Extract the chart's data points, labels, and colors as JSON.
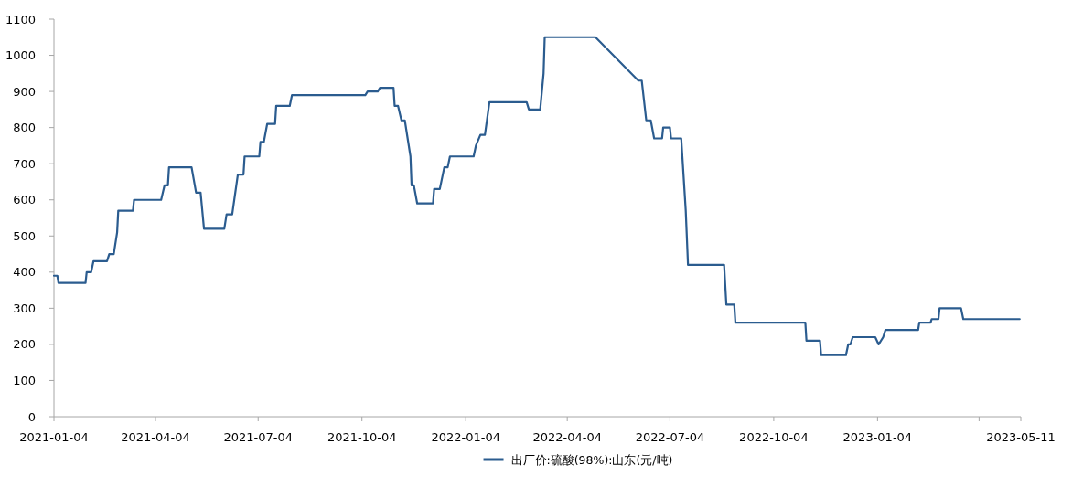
{
  "chart_data": {
    "type": "line",
    "x": [
      "2021-01-04",
      "2021-01-07",
      "2021-01-08",
      "2021-02-01",
      "2021-02-02",
      "2021-02-06",
      "2021-02-08",
      "2021-02-20",
      "2021-02-22",
      "2021-02-26",
      "2021-03-01",
      "2021-03-02",
      "2021-03-15",
      "2021-03-16",
      "2021-04-09",
      "2021-04-12",
      "2021-04-15",
      "2021-04-16",
      "2021-05-06",
      "2021-05-10",
      "2021-05-14",
      "2021-05-17",
      "2021-06-04",
      "2021-06-06",
      "2021-06-11",
      "2021-06-16",
      "2021-06-21",
      "2021-06-22",
      "2021-07-05",
      "2021-07-06",
      "2021-07-09",
      "2021-07-12",
      "2021-07-19",
      "2021-07-20",
      "2021-08-01",
      "2021-08-03",
      "2021-10-07",
      "2021-10-09",
      "2021-10-18",
      "2021-10-20",
      "2021-11-01",
      "2021-11-02",
      "2021-11-05",
      "2021-11-08",
      "2021-11-11",
      "2021-11-16",
      "2021-11-17",
      "2021-11-19",
      "2021-11-22",
      "2021-12-06",
      "2021-12-07",
      "2021-12-12",
      "2021-12-16",
      "2021-12-19",
      "2021-12-21",
      "2022-01-11",
      "2022-01-13",
      "2022-01-17",
      "2022-01-21",
      "2022-01-25",
      "2022-02-27",
      "2022-03-01",
      "2022-03-11",
      "2022-03-14",
      "2022-03-15",
      "2022-04-29",
      "2022-06-06",
      "2022-06-09",
      "2022-06-13",
      "2022-06-17",
      "2022-06-20",
      "2022-06-27",
      "2022-06-28",
      "2022-07-04",
      "2022-07-05",
      "2022-07-14",
      "2022-07-18",
      "2022-07-20",
      "2022-08-21",
      "2022-08-23",
      "2022-08-30",
      "2022-08-31",
      "2022-11-01",
      "2022-11-02",
      "2022-11-14",
      "2022-11-15",
      "2022-12-07",
      "2022-12-09",
      "2022-12-11",
      "2022-12-13",
      "2023-01-02",
      "2023-01-05",
      "2023-01-09",
      "2023-01-11",
      "2023-02-09",
      "2023-02-10",
      "2023-02-20",
      "2023-02-21",
      "2023-02-27",
      "2023-02-28",
      "2023-03-19",
      "2023-03-21",
      "2023-05-10"
    ],
    "series": [
      {
        "name": "出厂价:硫酸(98%):山东(元/吨)",
        "color": "#2b5c8f",
        "values": [
          390,
          390,
          370,
          370,
          400,
          400,
          430,
          430,
          450,
          450,
          510,
          570,
          570,
          600,
          600,
          640,
          640,
          690,
          690,
          620,
          620,
          520,
          520,
          560,
          560,
          670,
          670,
          720,
          720,
          760,
          760,
          810,
          810,
          860,
          860,
          890,
          890,
          900,
          900,
          910,
          910,
          860,
          860,
          820,
          820,
          720,
          640,
          640,
          590,
          590,
          630,
          630,
          690,
          690,
          720,
          720,
          750,
          780,
          780,
          870,
          870,
          850,
          850,
          950,
          1050,
          1050,
          930,
          930,
          820,
          820,
          770,
          770,
          800,
          800,
          770,
          770,
          570,
          420,
          420,
          310,
          310,
          260,
          260,
          210,
          210,
          170,
          170,
          200,
          200,
          220,
          220,
          200,
          220,
          240,
          240,
          260,
          260,
          270,
          270,
          300,
          300,
          270,
          270
        ]
      }
    ],
    "xlim": [
      "2021-01-04",
      "2023-05-11"
    ],
    "xticks": [
      {
        "value": "2021-01-04",
        "label": "2021-01-04"
      },
      {
        "value": "2021-04-04",
        "label": "2021-04-04"
      },
      {
        "value": "2021-07-04",
        "label": "2021-07-04"
      },
      {
        "value": "2021-10-04",
        "label": "2021-10-04"
      },
      {
        "value": "2022-01-04",
        "label": "2022-01-04"
      },
      {
        "value": "2022-04-04",
        "label": "2022-04-04"
      },
      {
        "value": "2022-07-04",
        "label": "2022-07-04"
      },
      {
        "value": "2022-10-04",
        "label": "2022-10-04"
      },
      {
        "value": "2023-01-04",
        "label": "2023-01-04"
      },
      {
        "value": "2023-04-04",
        "label": null
      },
      {
        "value": "2023-05-11",
        "label": "2023-05-11"
      }
    ],
    "ylim": [
      0,
      1100
    ],
    "yticks": [
      0,
      100,
      200,
      300,
      400,
      500,
      600,
      700,
      800,
      900,
      1000,
      1100
    ],
    "legend": "bottom"
  }
}
